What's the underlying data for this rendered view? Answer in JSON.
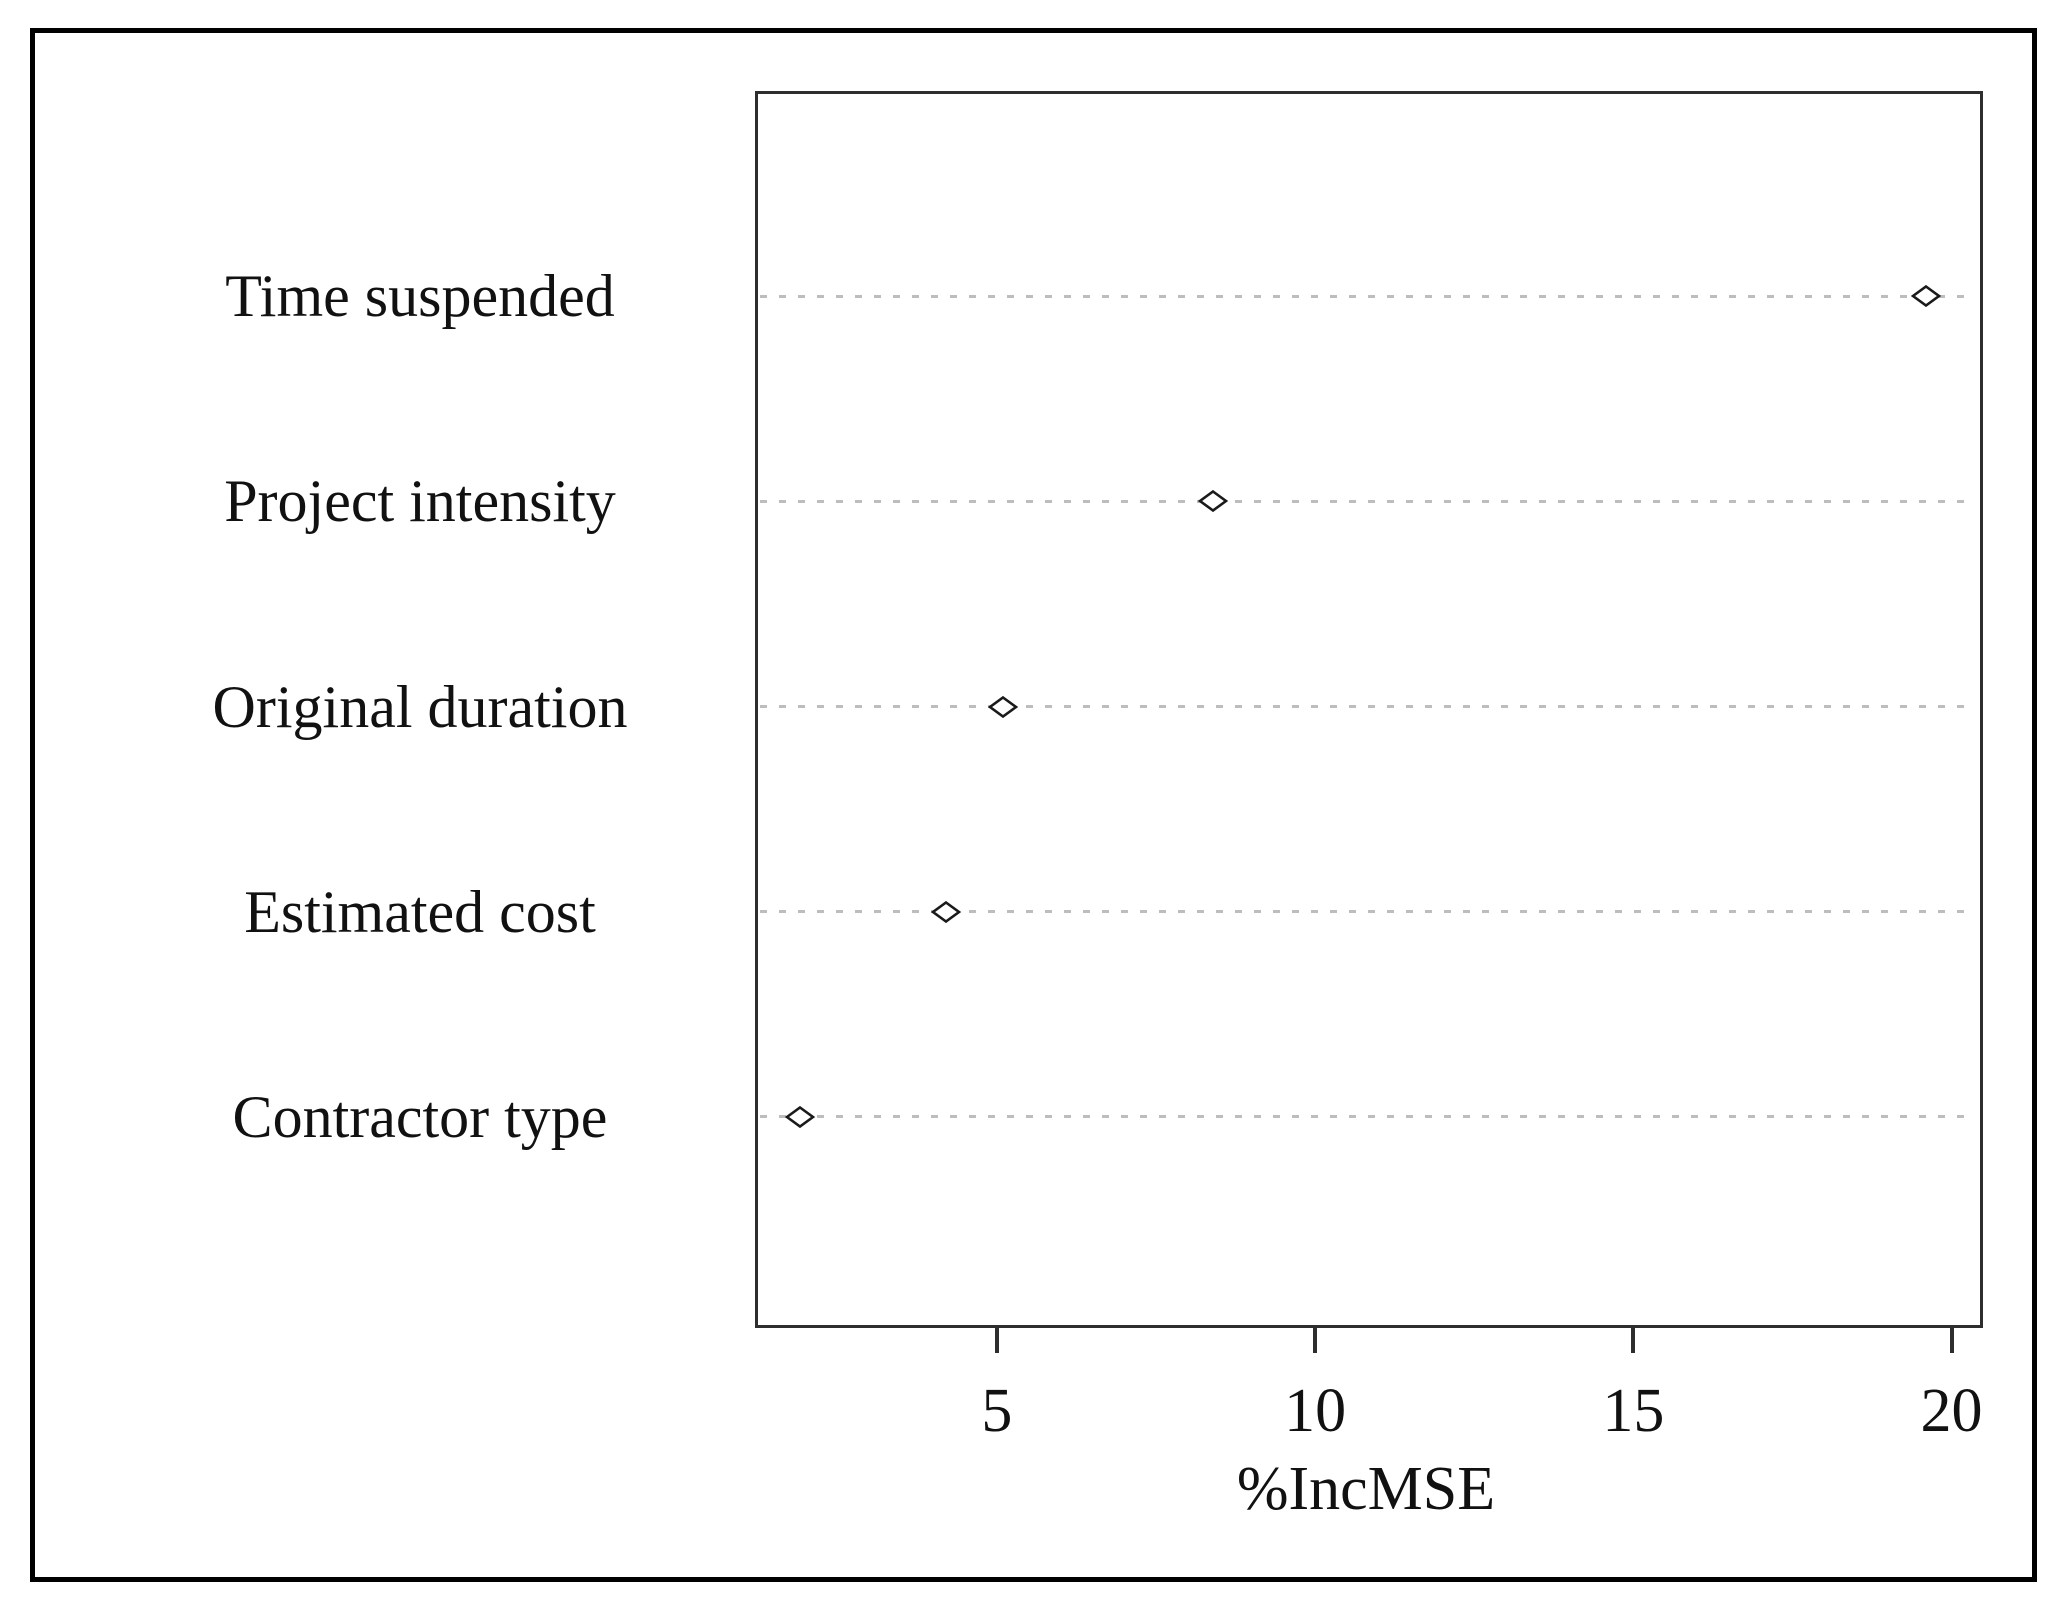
{
  "chart_data": {
    "type": "scatter",
    "subtype": "dot-plot-variable-importance",
    "title": "",
    "xlabel": "%IncMSE",
    "ylabel": "",
    "categories": [
      "Time suspended",
      "Project intensity",
      "Original duration",
      "Estimated cost",
      "Contractor type"
    ],
    "values": [
      19.6,
      8.4,
      5.1,
      4.2,
      1.9
    ],
    "xticks": [
      "5",
      "10",
      "15",
      "20"
    ],
    "xtick_values": [
      5,
      10,
      15,
      20
    ],
    "xlim": [
      1.2,
      20.4
    ],
    "grid": "horizontal dotted reference line per category",
    "legend": "none",
    "marker": "open-diamond",
    "colors": {
      "marker_stroke": "#1a1a1a",
      "marker_fill": "#ffffff",
      "grid_line": "#bdbdbd",
      "plot_border": "#2e2e2e",
      "figure_border": "#000000",
      "text": "#111111",
      "background": "#ffffff"
    }
  }
}
